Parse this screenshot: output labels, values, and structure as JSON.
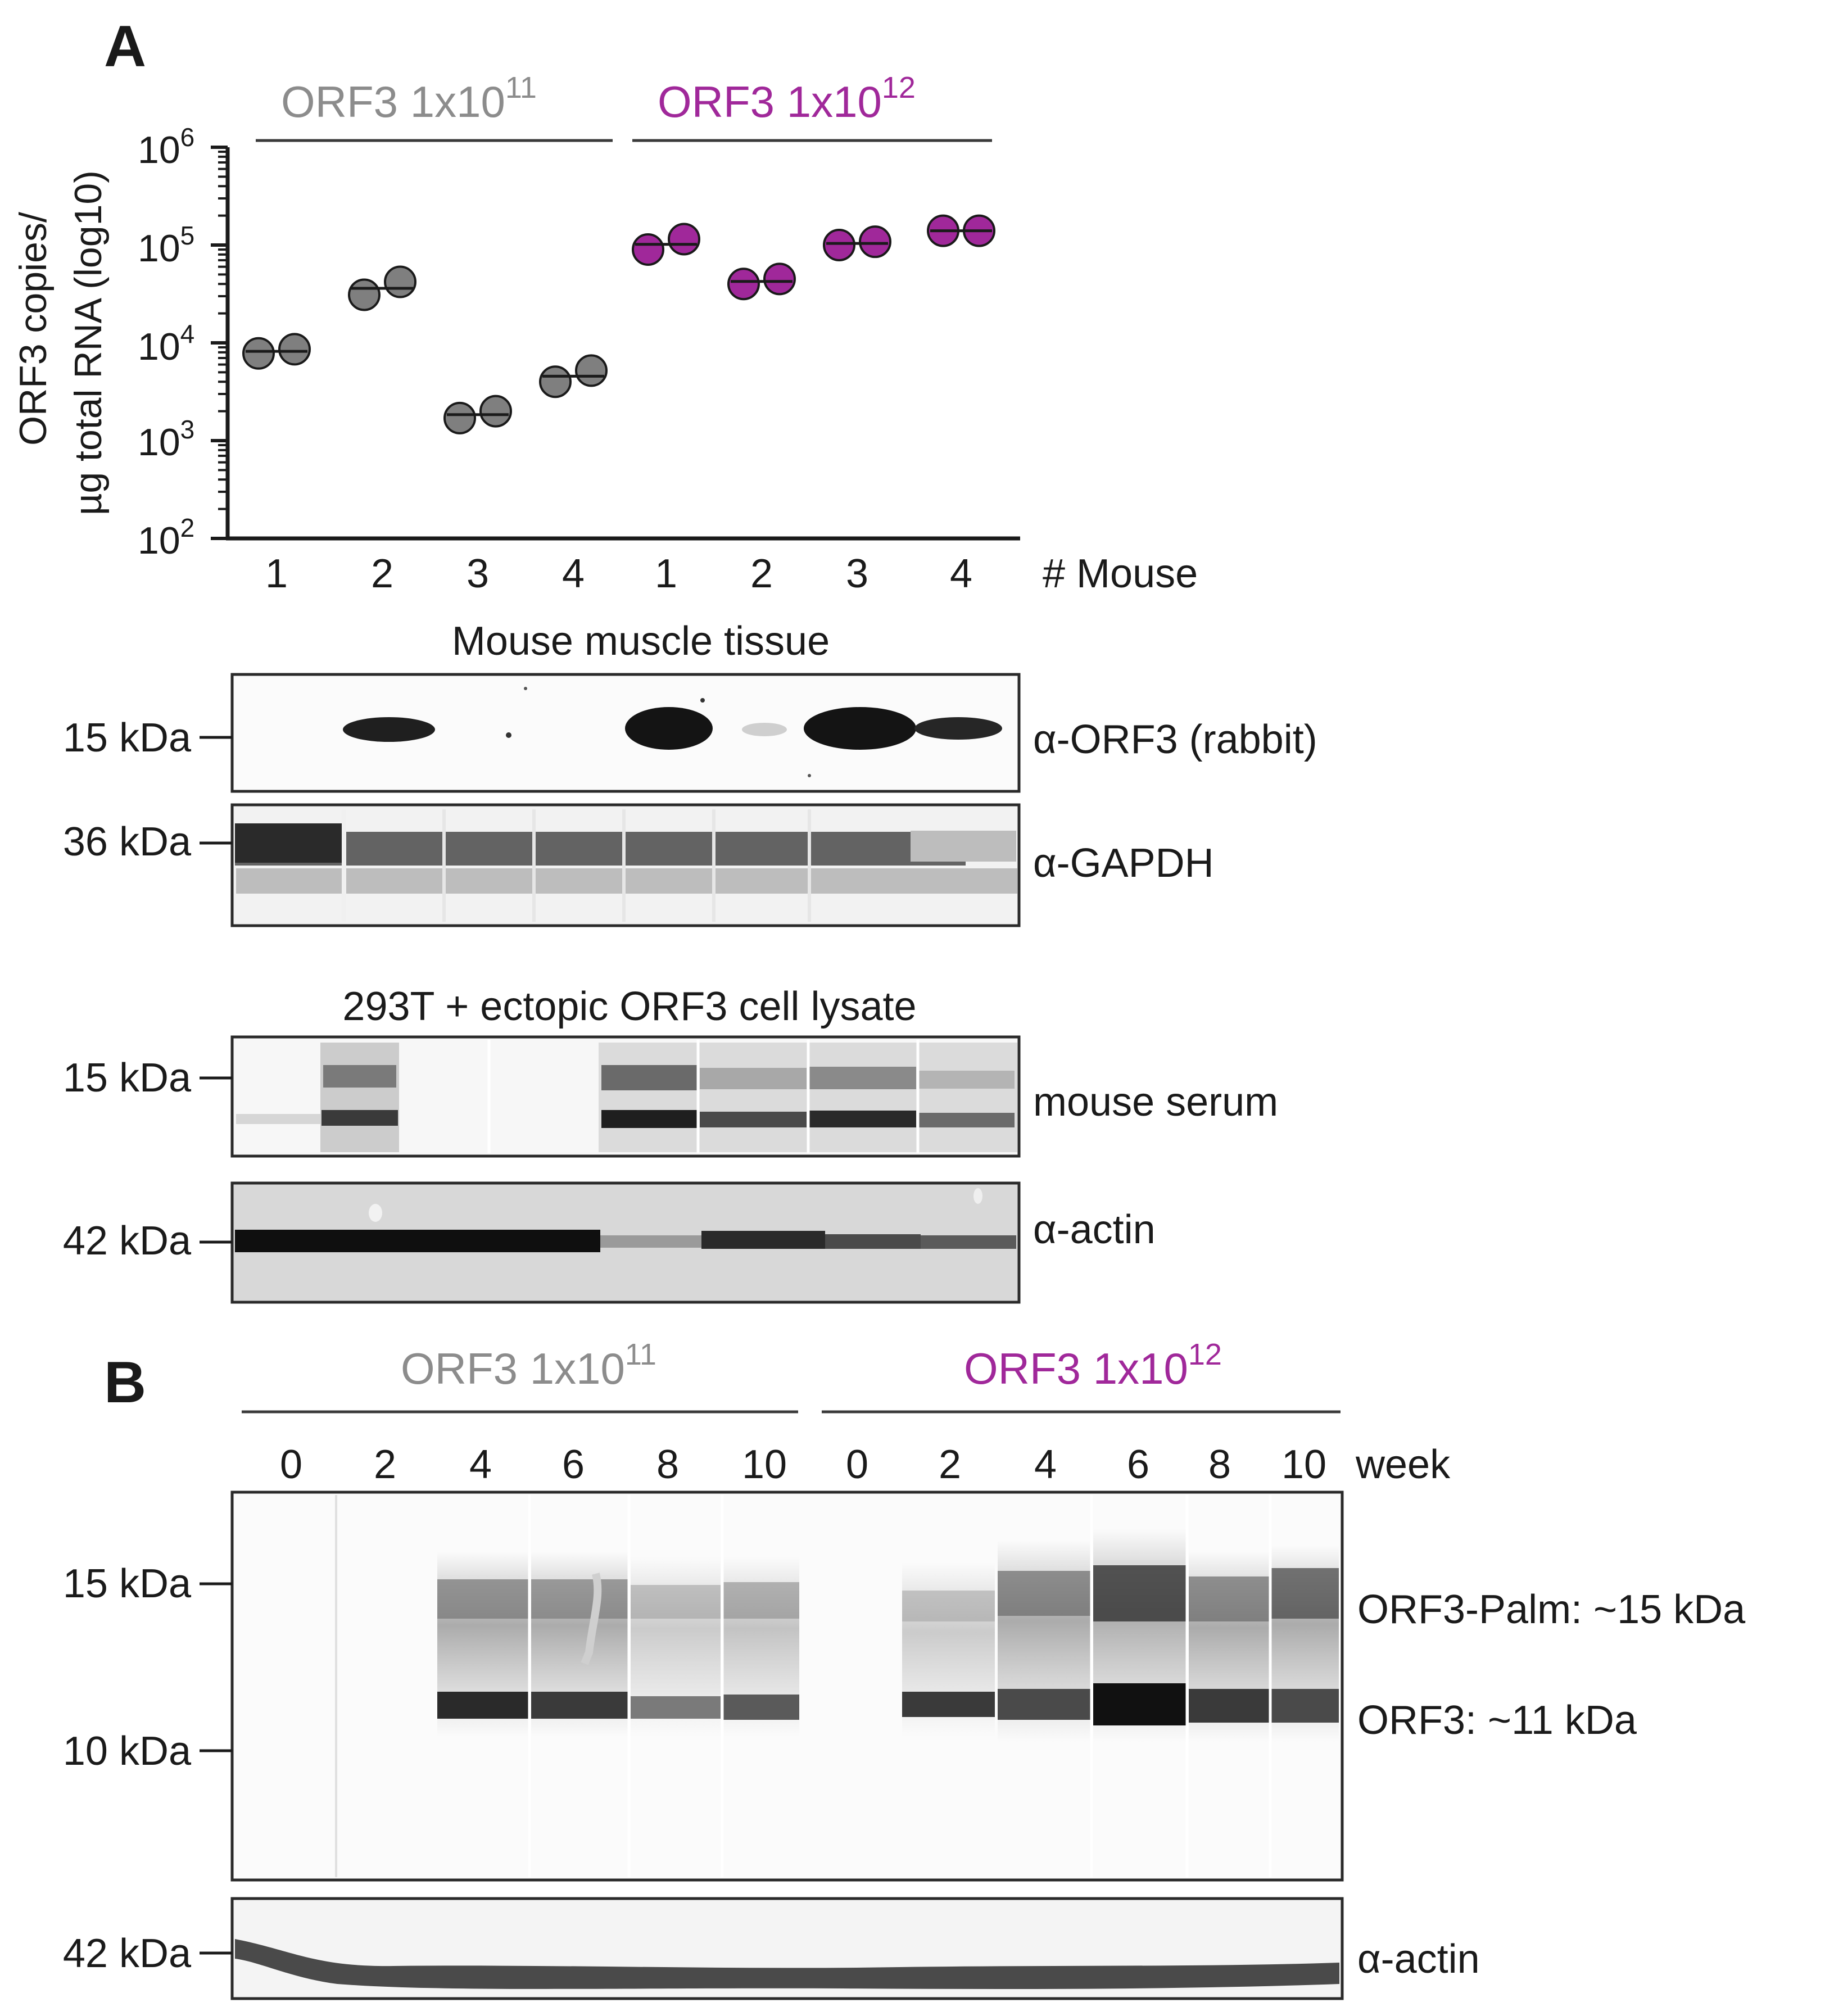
{
  "panel_a": {
    "letter": "A",
    "groups": [
      {
        "label_base": "ORF3 1x10",
        "label_exp": "11",
        "color": "#8c8c8c"
      },
      {
        "label_base": "ORF3 1x10",
        "label_exp": "12",
        "color": "#a0289a"
      }
    ],
    "y_axis": {
      "label_line1": "ORF3 copies/",
      "label_line2": "µg total RNA (log10)",
      "ticks": [
        {
          "base": "10",
          "exp": "6"
        },
        {
          "base": "10",
          "exp": "5"
        },
        {
          "base": "10",
          "exp": "4"
        },
        {
          "base": "10",
          "exp": "3"
        },
        {
          "base": "10",
          "exp": "2"
        }
      ]
    },
    "x_axis": {
      "label": "# Mouse",
      "ticks": [
        "1",
        "2",
        "3",
        "4",
        "1",
        "2",
        "3",
        "4"
      ]
    },
    "western_tissue": {
      "title": "Mouse muscle tissue",
      "blots": [
        {
          "marker": "15 kDa",
          "antibody": "α-ORF3 (rabbit)"
        },
        {
          "marker": "36 kDa",
          "antibody": "α-GAPDH"
        }
      ]
    },
    "western_lysate": {
      "title": "293T + ectopic ORF3 cell lysate",
      "blots": [
        {
          "marker": "15 kDa",
          "antibody": "mouse serum"
        },
        {
          "marker": "42 kDa",
          "antibody": "α-actin"
        }
      ]
    }
  },
  "panel_b": {
    "letter": "B",
    "groups": [
      {
        "label_base": "ORF3 1x10",
        "label_exp": "11",
        "color": "#8c8c8c"
      },
      {
        "label_base": "ORF3 1x10",
        "label_exp": "12",
        "color": "#a0289a"
      }
    ],
    "weeks": [
      "0",
      "2",
      "4",
      "6",
      "8",
      "10",
      "0",
      "2",
      "4",
      "6",
      "8",
      "10"
    ],
    "week_label": "week",
    "main_blot": {
      "markers": [
        "15 kDa",
        "10 kDa"
      ],
      "band_labels": [
        "ORF3-Palm: ~15 kDa",
        "ORF3: ~11 kDa"
      ]
    },
    "actin_blot": {
      "marker": "42 kDa",
      "antibody": "α-actin"
    }
  },
  "chart_data": {
    "type": "scatter",
    "title": "",
    "xlabel": "# Mouse",
    "ylabel": "ORF3 copies/ µg total RNA (log10)",
    "y_scale": "log10",
    "ylim": [
      100,
      1000000
    ],
    "categories": [
      "1",
      "2",
      "3",
      "4",
      "1",
      "2",
      "3",
      "4"
    ],
    "series": [
      {
        "name": "ORF3 1x10^11",
        "color": "#7f7f7f",
        "points": [
          {
            "mouse": "1",
            "values": [
              7800,
              8600
            ]
          },
          {
            "mouse": "2",
            "values": [
              31000,
              42000
            ]
          },
          {
            "mouse": "3",
            "values": [
              1700,
              2000
            ]
          },
          {
            "mouse": "4",
            "values": [
              4000,
              5200
            ]
          }
        ]
      },
      {
        "name": "ORF3 1x10^12",
        "color": "#a0289a",
        "points": [
          {
            "mouse": "1",
            "values": [
              90000,
              115000
            ]
          },
          {
            "mouse": "2",
            "values": [
              40000,
              45000
            ]
          },
          {
            "mouse": "3",
            "values": [
              100000,
              108000
            ]
          },
          {
            "mouse": "4",
            "values": [
              140000,
              140000
            ]
          }
        ]
      }
    ]
  }
}
